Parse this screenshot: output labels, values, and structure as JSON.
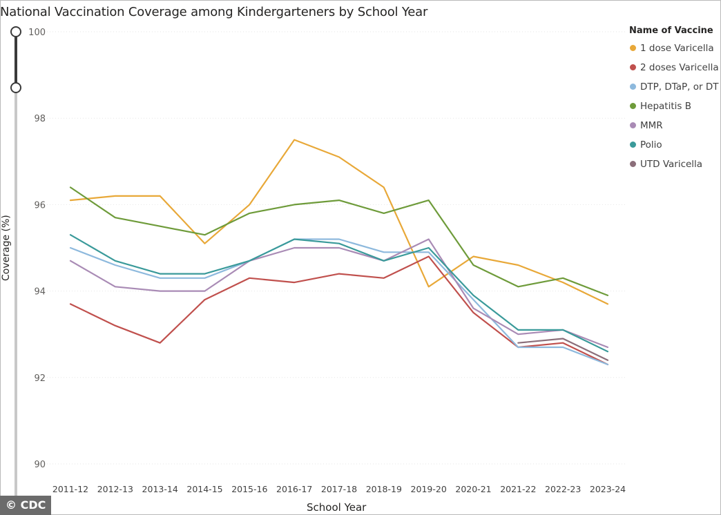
{
  "chart_data": {
    "type": "line",
    "title": "National Vaccination Coverage among Kindergarteners by School Year",
    "xlabel": "School Year",
    "ylabel": "Coverage (%)",
    "ylim": [
      90,
      100
    ],
    "yticks": [
      90,
      92,
      94,
      96,
      98,
      100
    ],
    "grid": true,
    "legend_title": "Name of Vaccine",
    "legend_position": "right",
    "categories": [
      "2011-12",
      "2012-13",
      "2013-14",
      "2014-15",
      "2015-16",
      "2016-17",
      "2017-18",
      "2018-19",
      "2019-20",
      "2020-21",
      "2021-22",
      "2022-23",
      "2023-24"
    ],
    "series": [
      {
        "name": "1 dose Varicella",
        "legend_label": "1 dose Varicella",
        "color": "#E8A838",
        "values": [
          96.1,
          96.2,
          96.2,
          95.1,
          96.0,
          97.5,
          97.1,
          96.4,
          94.1,
          94.8,
          94.6,
          94.2,
          93.7
        ]
      },
      {
        "name": "2 doses Varicella",
        "legend_label": "2 doses Varicella",
        "color": "#C0504D",
        "values": [
          93.7,
          93.2,
          92.8,
          93.8,
          94.3,
          94.2,
          94.4,
          94.3,
          94.8,
          93.5,
          92.7,
          92.8,
          92.3
        ]
      },
      {
        "name": "DTP, DTaP, or DT",
        "legend_label": "DTP, DTaP, or DT",
        "color": "#8DB9DD",
        "values": [
          95.0,
          94.6,
          94.3,
          94.3,
          94.7,
          95.2,
          95.2,
          94.9,
          94.9,
          93.8,
          92.7,
          92.7,
          92.3
        ]
      },
      {
        "name": "Hepatitis B",
        "legend_label": "Hepatitis B",
        "color": "#6E9B3A",
        "values": [
          96.4,
          95.7,
          95.5,
          95.3,
          95.8,
          96.0,
          96.1,
          95.8,
          96.1,
          94.6,
          94.1,
          94.3,
          93.9
        ]
      },
      {
        "name": "MMR",
        "legend_label": "MMR",
        "color": "#A98BB5",
        "values": [
          94.7,
          94.1,
          94.0,
          94.0,
          94.7,
          95.0,
          95.0,
          94.7,
          95.2,
          93.6,
          93.0,
          93.1,
          92.7
        ]
      },
      {
        "name": "Polio",
        "legend_label": "Polio",
        "color": "#3A9A9A",
        "values": [
          95.3,
          94.7,
          94.4,
          94.4,
          94.7,
          95.2,
          95.1,
          94.7,
          95.0,
          93.9,
          93.1,
          93.1,
          92.6
        ]
      },
      {
        "name": "UTD Varicella",
        "legend_label": "UTD Varicella",
        "color": "#8B6E7A",
        "values": [
          null,
          null,
          null,
          null,
          null,
          null,
          null,
          null,
          null,
          null,
          92.8,
          92.9,
          92.4
        ]
      }
    ]
  },
  "credit": "© CDC",
  "slider": {
    "range_low": 98.7,
    "range_high": 100
  }
}
